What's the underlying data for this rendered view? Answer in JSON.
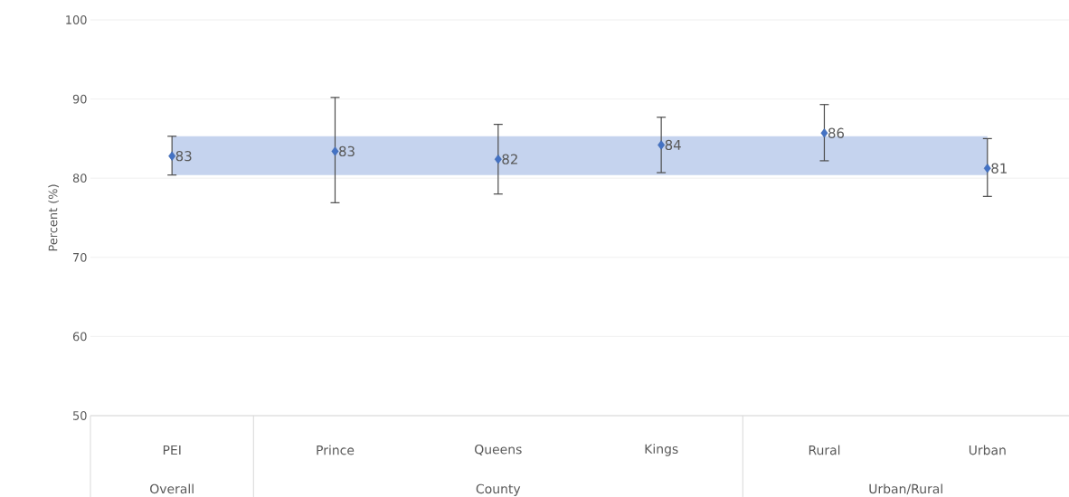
{
  "chart_data": {
    "type": "scatter",
    "ylabel": "Percent (%)",
    "categories": [
      "PEI",
      "Prince",
      "Queens",
      "Kings",
      "Rural",
      "Urban"
    ],
    "values": [
      82.8,
      83.4,
      82.4,
      84.2,
      85.7,
      81.25
    ],
    "errors": [
      [
        80.4,
        85.3
      ],
      [
        76.9,
        90.2
      ],
      [
        78.0,
        86.8
      ],
      [
        80.7,
        87.7
      ],
      [
        82.2,
        89.3
      ],
      [
        77.7,
        85.0
      ]
    ],
    "value_labels": [
      "83",
      "83",
      "82",
      "84",
      "86",
      "81"
    ],
    "color": "#4472c4",
    "marker": "diamond",
    "bands": [
      {
        "axis": "y",
        "from": 80.4,
        "to": 85.3,
        "color": "#c5d3ee"
      }
    ],
    "annotations": [
      "Overall",
      "County",
      "Urban/Rural"
    ],
    "ylim": [
      50,
      100
    ],
    "yticks": [
      50,
      60,
      70,
      80,
      90,
      100
    ],
    "grid": "y"
  }
}
